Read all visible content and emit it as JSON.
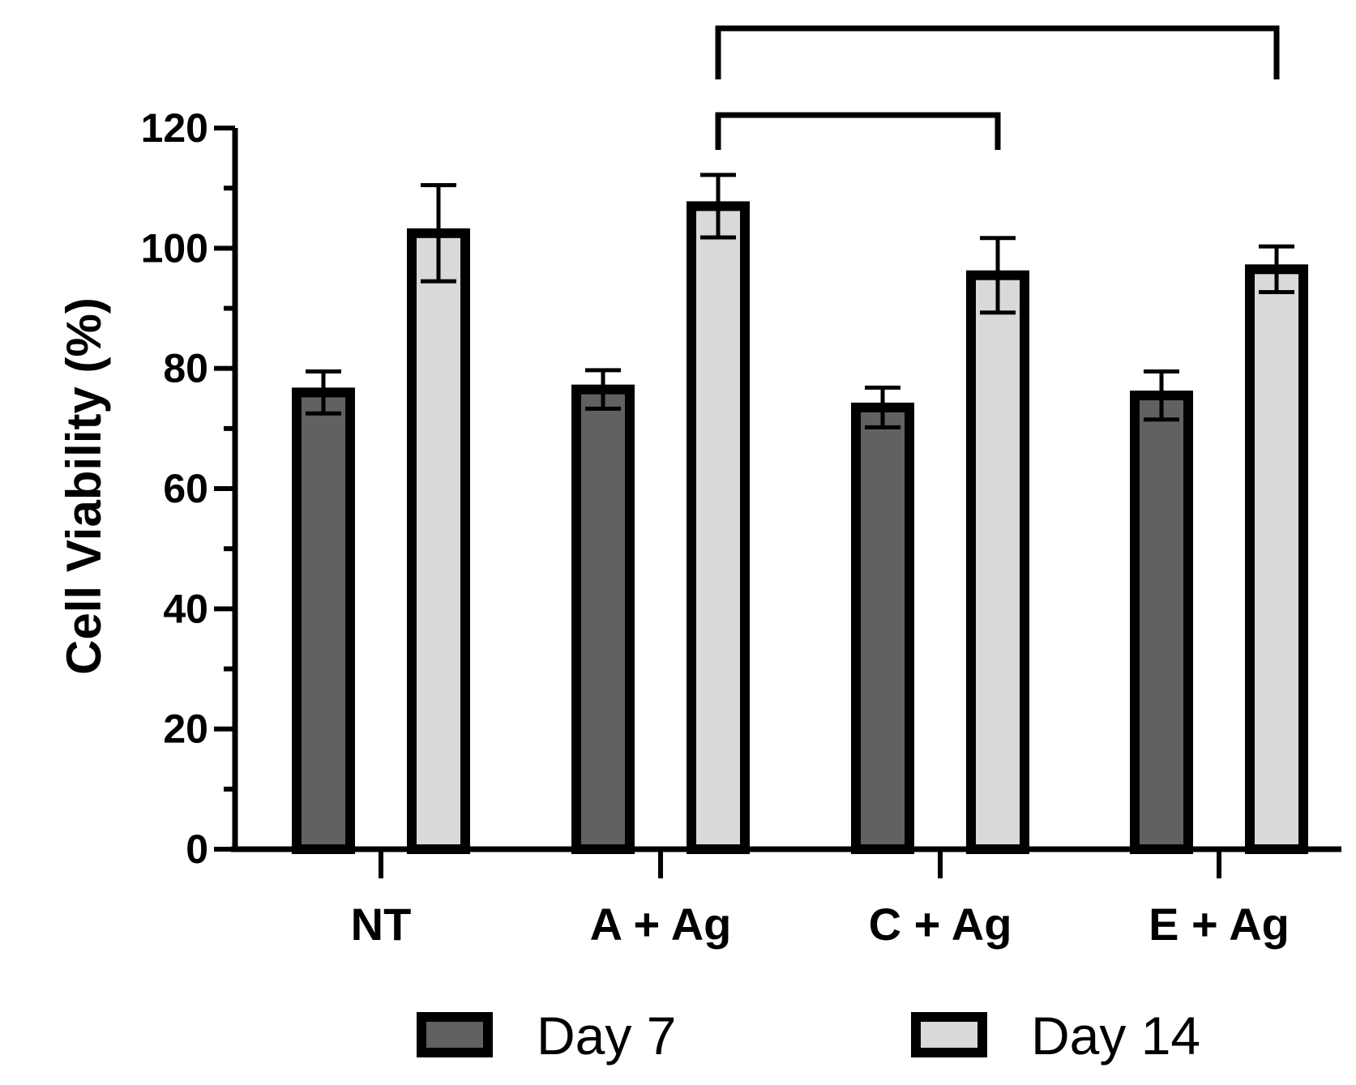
{
  "chart_data": {
    "type": "bar",
    "ylabel": "Cell Viability (%)",
    "xlabel": "",
    "ylim": [
      0,
      120
    ],
    "yticks": [
      0,
      20,
      40,
      60,
      80,
      100,
      120
    ],
    "yticks_minor_step": 10,
    "categories": [
      "NT",
      "A + Ag",
      "C + Ag",
      "E + Ag"
    ],
    "series": [
      {
        "name": "Day 7",
        "color": "#616161",
        "values": [
          76,
          76.5,
          73.5,
          75.5
        ],
        "errors": [
          3.5,
          3.2,
          3.3,
          4.0
        ]
      },
      {
        "name": "Day 14",
        "color": "#d9d9d9",
        "values": [
          102.5,
          107,
          95.5,
          96.5
        ],
        "errors": [
          8.0,
          5.2,
          6.2,
          3.8
        ]
      }
    ],
    "significance_brackets": [
      {
        "from": "A + Ag",
        "to": "C + Ag",
        "series": "Day 14"
      },
      {
        "from": "A + Ag",
        "to": "E + Ag",
        "series": "Day 14"
      }
    ],
    "legend_position": "bottom",
    "grid": false
  }
}
